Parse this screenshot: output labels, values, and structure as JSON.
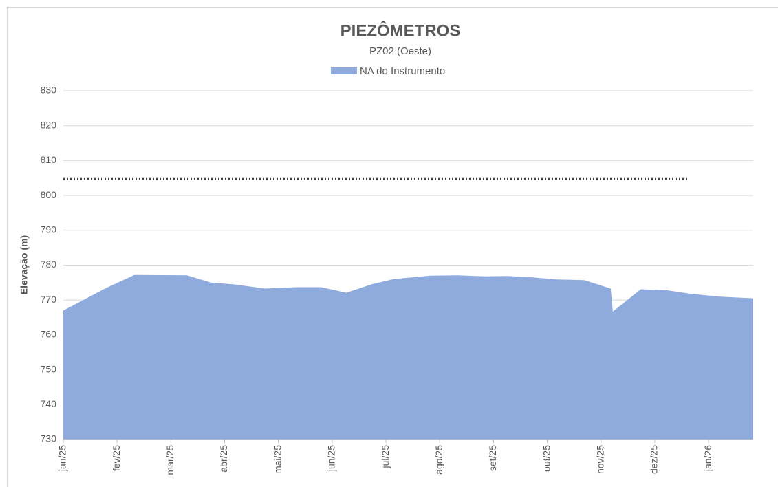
{
  "chart_data": {
    "type": "area",
    "title": "PIEZÔMETROS",
    "subtitle": "PZ02 (Oeste)",
    "y_label": "Elevação (m)",
    "x": [
      0,
      0.8,
      1.32,
      2.3,
      2.75,
      3.17,
      3.75,
      4.32,
      4.8,
      5.26,
      5.73,
      6.14,
      6.82,
      7.33,
      7.84,
      8.26,
      8.73,
      9.18,
      9.69,
      10.18,
      10.22,
      10.74,
      11.23,
      11.67,
      12.19,
      12.83
    ],
    "series": [
      {
        "name": "NA do Instrumento",
        "color": "#8faadc",
        "values": [
          767,
          773.5,
          777.2,
          777.1,
          775,
          774.5,
          773.3,
          773.7,
          773.7,
          772.1,
          774.5,
          776,
          777,
          777.1,
          776.8,
          776.9,
          776.5,
          775.9,
          775.7,
          773.3,
          766.7,
          773.1,
          772.8,
          771.8,
          771,
          770.5
        ]
      }
    ],
    "reference_line": {
      "y": 804.7,
      "x": [
        0,
        11.6
      ],
      "color": "#404040",
      "style": "dotted"
    },
    "xlim": [
      0,
      12.83
    ],
    "xticks": [
      {
        "value": 0,
        "label": "jan/25"
      },
      {
        "value": 1,
        "label": "fev/25"
      },
      {
        "value": 2,
        "label": "mar/25"
      },
      {
        "value": 3,
        "label": "abr/25"
      },
      {
        "value": 4,
        "label": "mai/25"
      },
      {
        "value": 5,
        "label": "jun/25"
      },
      {
        "value": 6,
        "label": "jul/25"
      },
      {
        "value": 7,
        "label": "ago/25"
      },
      {
        "value": 8,
        "label": "set/25"
      },
      {
        "value": 9,
        "label": "out/25"
      },
      {
        "value": 10,
        "label": "nov/25"
      },
      {
        "value": 11,
        "label": "dez/25"
      },
      {
        "value": 12,
        "label": "jan/26"
      }
    ],
    "ylim": [
      730,
      830
    ],
    "yticks": [
      730,
      740,
      750,
      760,
      770,
      780,
      790,
      800,
      810,
      820,
      830
    ],
    "grid": true,
    "legend": "top"
  }
}
